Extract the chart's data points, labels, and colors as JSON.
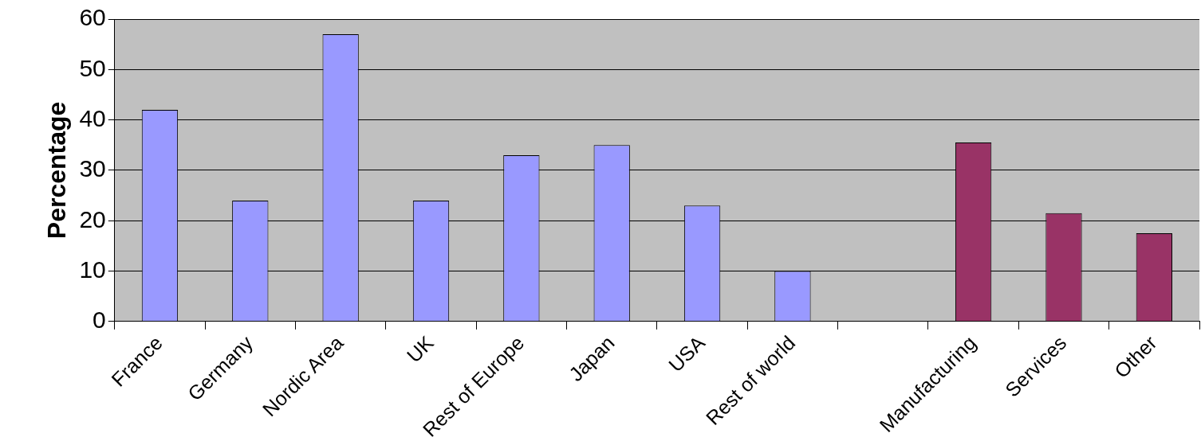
{
  "chart_data": {
    "type": "bar",
    "ylabel": "Percentage",
    "categories": [
      "France",
      "Germany",
      "Nordic Area",
      "UK",
      "Rest of Europe",
      "Japan",
      "USA",
      "Rest of world",
      null,
      "Manufacturing",
      "Services",
      "Other"
    ],
    "values": [
      42,
      24,
      57,
      24,
      33,
      35,
      23,
      10,
      null,
      35.5,
      21.5,
      17.5
    ],
    "colors": [
      "#9999ff",
      "#9999ff",
      "#9999ff",
      "#9999ff",
      "#9999ff",
      "#9999ff",
      "#9999ff",
      "#9999ff",
      "#9999ff",
      "#993366",
      "#993366",
      "#993366"
    ],
    "ylim": [
      0,
      60
    ],
    "yticks": [
      0,
      10,
      20,
      30,
      40,
      50,
      60
    ],
    "grid": "y"
  }
}
